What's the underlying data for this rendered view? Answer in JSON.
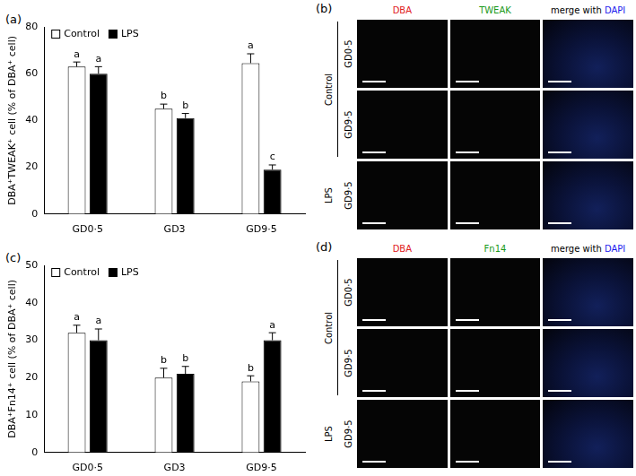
{
  "chart_data": [
    {
      "type": "bar",
      "panel": "(a)",
      "y_label": "DBA⁺TWEAK⁺ cell (% of DBA⁺ cell)",
      "categories": [
        "GD0·5",
        "GD3",
        "GD9·5"
      ],
      "series": [
        {
          "name": "Control",
          "color": "#ffffff",
          "values": [
            63,
            45,
            64.5
          ],
          "errors": [
            2,
            2,
            4
          ],
          "annotations": [
            "a",
            "b",
            "a"
          ]
        },
        {
          "name": "LPS",
          "color": "#000000",
          "values": [
            60,
            41,
            19
          ],
          "errors": [
            3,
            2,
            2
          ],
          "annotations": [
            "a",
            "b",
            "c"
          ]
        }
      ],
      "ylim": [
        0,
        80
      ],
      "yticks": [
        0,
        20,
        40,
        60,
        80
      ],
      "grid": false,
      "legend": "upper left"
    },
    {
      "type": "bar",
      "panel": "(c)",
      "y_label": "DBA⁺Fn14⁺ cell (% of DBA⁺ cell)",
      "categories": [
        "GD0·5",
        "GD3",
        "GD9·5"
      ],
      "series": [
        {
          "name": "Control",
          "color": "#ffffff",
          "values": [
            32,
            20,
            19
          ],
          "errors": [
            2,
            2.5,
            1.5
          ],
          "annotations": [
            "a",
            "b",
            "b"
          ]
        },
        {
          "name": "LPS",
          "color": "#000000",
          "values": [
            30,
            21,
            30
          ],
          "errors": [
            3,
            2,
            2
          ],
          "annotations": [
            "a",
            "b",
            "a"
          ]
        }
      ],
      "ylim": [
        0,
        50
      ],
      "yticks": [
        0,
        10,
        20,
        30,
        40,
        50
      ],
      "grid": false,
      "legend": "upper left"
    }
  ],
  "image_panels": [
    {
      "panel": "(b)",
      "columns": [
        {
          "parts": [
            {
              "text": "DBA",
              "color": "#e0201c"
            }
          ]
        },
        {
          "parts": [
            {
              "text": "TWEAK",
              "color": "#1a9a1a"
            }
          ]
        },
        {
          "parts": [
            {
              "text": "merge with ",
              "color": "#000000"
            },
            {
              "text": "DAPI",
              "color": "#1a1aee"
            }
          ]
        }
      ],
      "groups": [
        {
          "text": "Control",
          "rows": 2
        },
        {
          "text": "LPS",
          "rows": 1
        }
      ],
      "rows": [
        "GD0·5",
        "GD9·5",
        "GD9·5"
      ]
    },
    {
      "panel": "(d)",
      "columns": [
        {
          "parts": [
            {
              "text": "DBA",
              "color": "#e0201c"
            }
          ]
        },
        {
          "parts": [
            {
              "text": "Fn14",
              "color": "#1a9a1a"
            }
          ]
        },
        {
          "parts": [
            {
              "text": "merge with ",
              "color": "#000000"
            },
            {
              "text": "DAPI",
              "color": "#1a1aee"
            }
          ]
        }
      ],
      "groups": [
        {
          "text": "Control",
          "rows": 2
        },
        {
          "text": "LPS",
          "rows": 1
        }
      ],
      "rows": [
        "GD0·5",
        "GD9·5",
        "GD9·5"
      ]
    }
  ]
}
